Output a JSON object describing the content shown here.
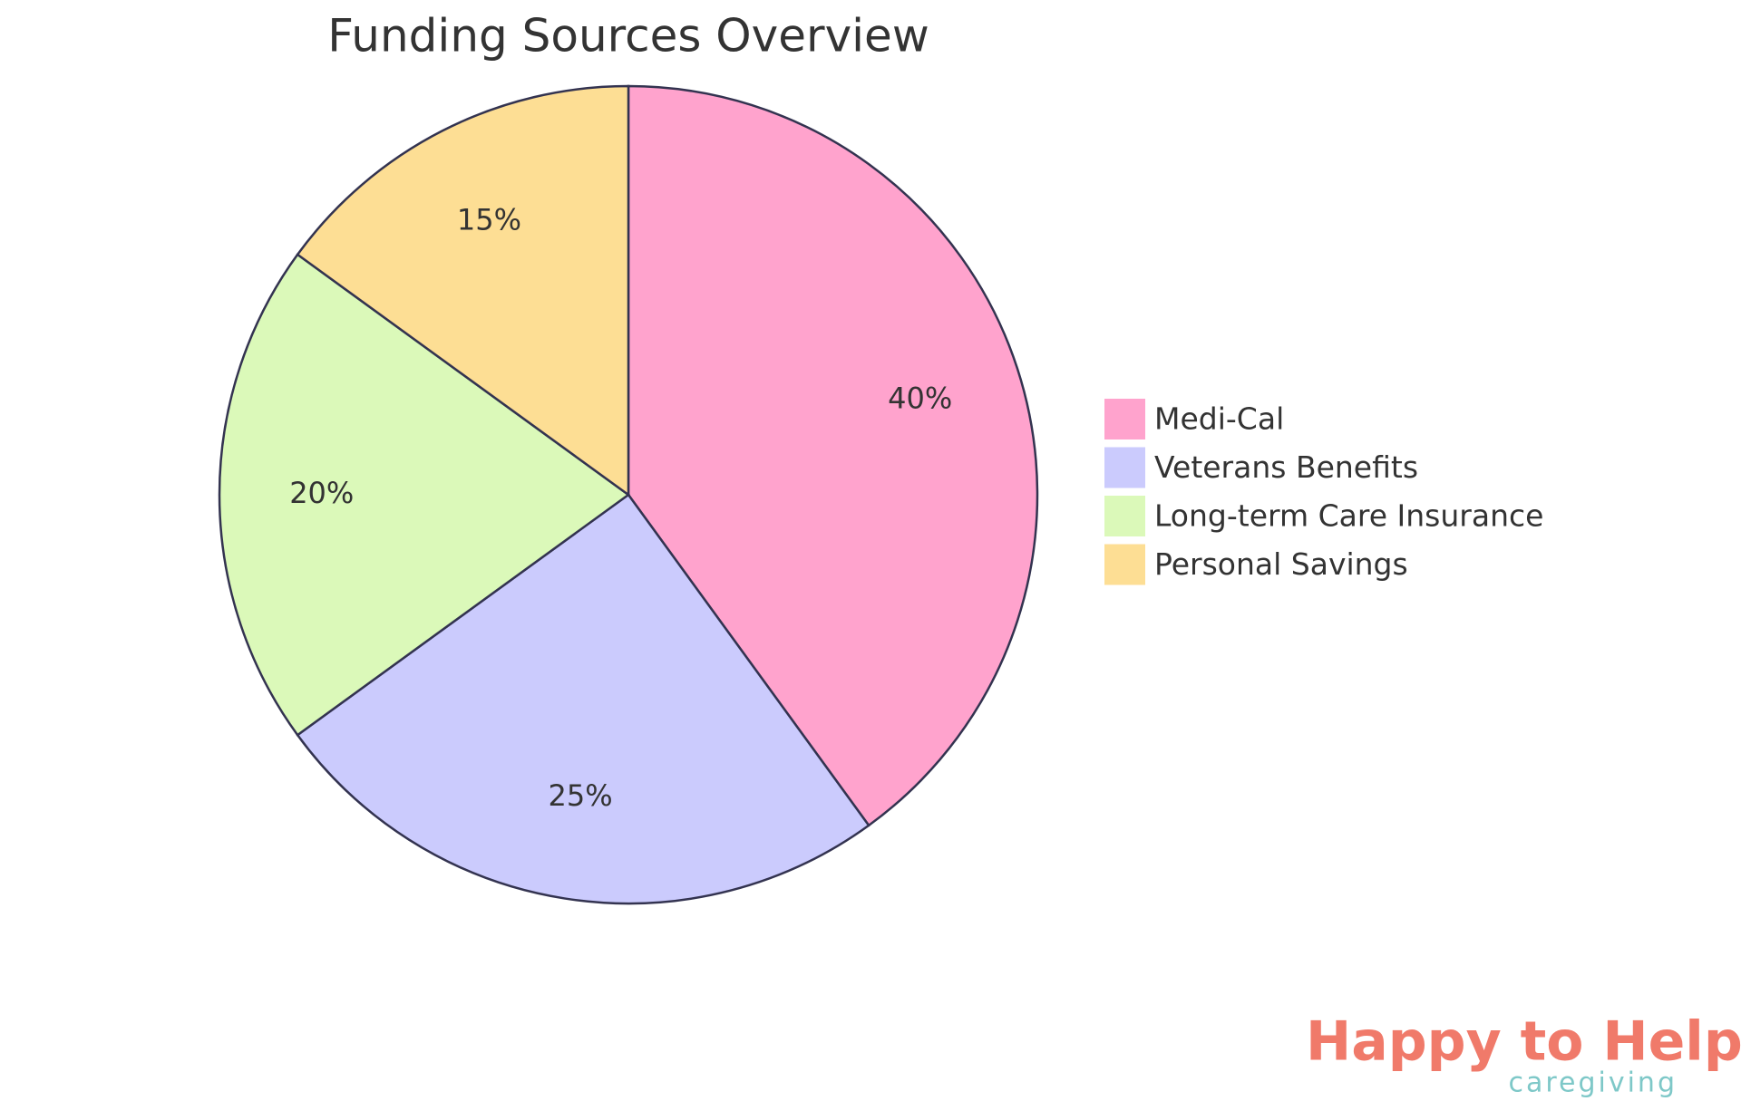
{
  "chart_data": {
    "type": "pie",
    "title": "Funding Sources Overview",
    "categories": [
      "Medi-Cal",
      "Veterans Benefits",
      "Long-term Care Insurance",
      "Personal Savings"
    ],
    "values": [
      40,
      25,
      20,
      15
    ],
    "value_labels": [
      "40%",
      "25%",
      "20%",
      "15%"
    ],
    "colors": [
      "#ffa3cd",
      "#cbcbfd",
      "#dbf9b9",
      "#fdde94"
    ],
    "legend": "right"
  },
  "logo": {
    "name": "Happy to Help",
    "tagline": "caregiving"
  }
}
